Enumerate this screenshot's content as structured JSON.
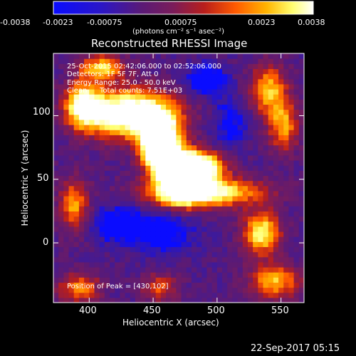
{
  "chart_data": {
    "type": "heatmap",
    "title": "Reconstructed RHESSI Image",
    "xlabel": "Heliocentric X (arcsec)",
    "ylabel": "Heliocentric Y (arcsec)",
    "xlim": [
      372,
      568
    ],
    "ylim": [
      -47,
      149
    ],
    "xticks": [
      400,
      450,
      500,
      550
    ],
    "yticks": [
      0,
      50,
      100
    ],
    "colorbar": {
      "range": [
        -0.0038,
        0.0038
      ],
      "tick_labels": [
        "-0.0038",
        "-0.0023",
        "-0.00075",
        "0.00075",
        "0.0023",
        "0.0038"
      ],
      "units_label": "(photons cm⁻² s⁻¹ asec⁻²)",
      "colormap": [
        "#0a0cff",
        "#3a1aa0",
        "#5a1a76",
        "#7a1c5a",
        "#b81e1c",
        "#ff5a00",
        "#ffb400",
        "#ffff70",
        "#ffffff"
      ]
    },
    "annotations": [
      "25-Oct-2015 02:42:06.000 to 02:52:06.000",
      "Detectors: 1F 5F 7F, Att 0",
      "Energy Range: 25.0 - 50.0 keV",
      "Clean",
      "Total counts: 7.51E+03"
    ],
    "peak_label": "Position of Peak = [430,102]",
    "peak": [
      430,
      102
    ],
    "grid": false
  },
  "footer": {
    "timestamp": "22-Sep-2017 05:15"
  }
}
